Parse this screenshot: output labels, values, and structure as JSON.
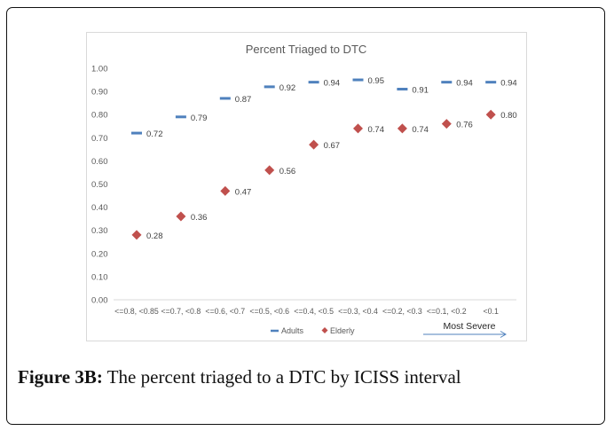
{
  "caption": {
    "label": "Figure 3B:",
    "text": " The percent triaged to a DTC by ICISS interval"
  },
  "chart_data": {
    "type": "scatter",
    "title": "Percent Triaged to DTC",
    "xlabel": "",
    "ylabel": "",
    "categories": [
      "<=0.8, <0.85",
      "<=0.7, <0.8",
      "<=0.6, <0.7",
      "<=0.5, <0.6",
      "<=0.4, <0.5",
      "<=0.3, <0.4",
      "<=0.2, <0.3",
      "<=0.1, <0.2",
      "<0.1"
    ],
    "ylim": [
      0,
      1.0
    ],
    "yticks": [
      "0.00",
      "0.10",
      "0.20",
      "0.30",
      "0.40",
      "0.50",
      "0.60",
      "0.70",
      "0.80",
      "0.90",
      "1.00"
    ],
    "grid": false,
    "legend_position": "bottom",
    "series": [
      {
        "name": "Adults",
        "marker": "dash",
        "color": "#4f81bd",
        "values": [
          0.72,
          0.79,
          0.87,
          0.92,
          0.94,
          0.95,
          0.91,
          0.94,
          0.94
        ]
      },
      {
        "name": "Elderly",
        "marker": "diamond",
        "color": "#c0504d",
        "values": [
          0.28,
          0.36,
          0.47,
          0.56,
          0.67,
          0.74,
          0.74,
          0.76,
          0.8
        ]
      }
    ],
    "annotation": {
      "text": "Most Severe",
      "arrow": "right",
      "color": "#4f81bd"
    }
  }
}
